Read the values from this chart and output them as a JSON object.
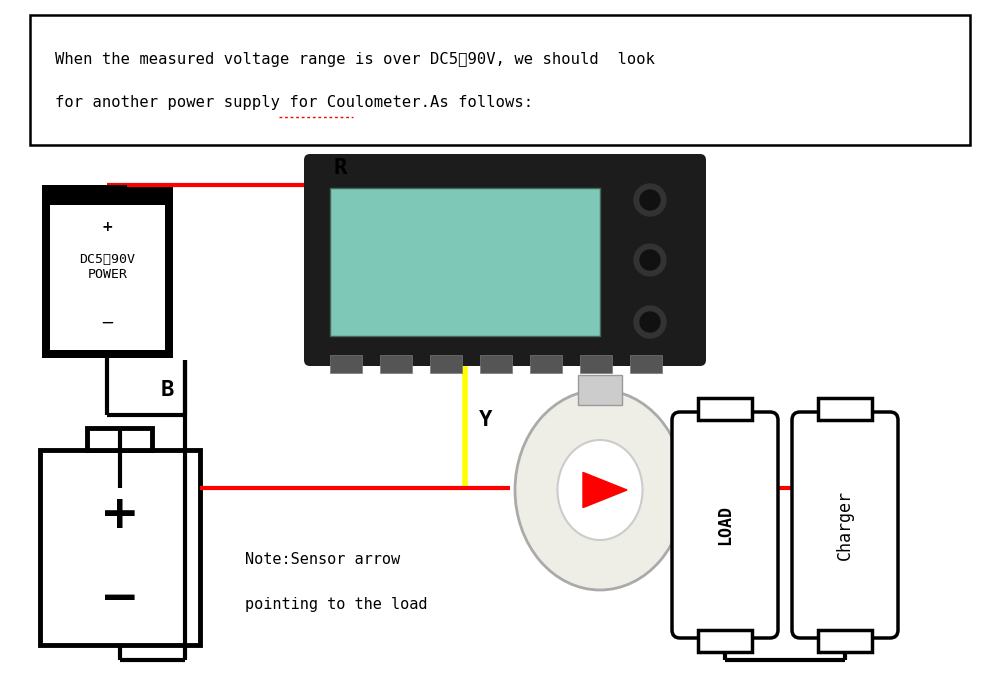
{
  "bg_color": "#ffffff",
  "red_wire": "#ff0000",
  "black_wire": "#000000",
  "yellow_wire": "#ffff00",
  "line1": "When the measured voltage range is over DC5～90V, we should  look",
  "line2": "for another power supply for Coulometer.As follows:",
  "label_R": "R",
  "label_B": "B",
  "label_Y": "Y",
  "label_note1": "Note:Sensor arrow",
  "label_note2": "pointing to the load",
  "label_load": "LOAD",
  "label_charger": "Charger",
  "display_color": "#7ec8b8",
  "device_color": "#1c1c1c",
  "sensor_color": "#eeede6",
  "sensor_shadow": "#d0cfc8",
  "figw": 10.0,
  "figh": 6.94
}
